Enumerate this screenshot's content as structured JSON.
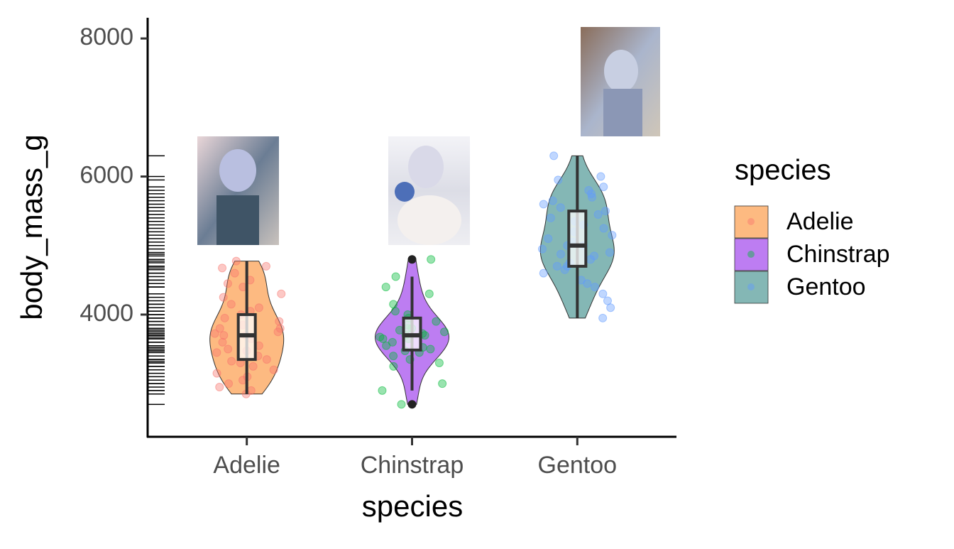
{
  "chart_data": {
    "type": "violin",
    "x_label": "species",
    "y_label": "body_mass_g",
    "legend_title": "species",
    "categories": [
      "Adelie",
      "Chinstrap",
      "Gentoo"
    ],
    "ylim": [
      2230,
      8300
    ],
    "yticks": [
      4000,
      6000,
      8000
    ],
    "rug": true,
    "series": [
      {
        "name": "Adelie",
        "color": "#FDAE6B",
        "point_color": "#F8766D",
        "values": [
          2850,
          2900,
          2950,
          3000,
          3050,
          3100,
          3150,
          3200,
          3250,
          3300,
          3325,
          3350,
          3400,
          3450,
          3475,
          3500,
          3550,
          3600,
          3650,
          3700,
          3700,
          3725,
          3750,
          3800,
          3800,
          3850,
          3900,
          3950,
          4000,
          4050,
          4100,
          4150,
          4250,
          4300,
          4400,
          4450,
          4500,
          4600,
          4675,
          4700,
          4775
        ],
        "box": {
          "whisker_low": 2850,
          "q1": 3350,
          "median": 3700,
          "q3": 4000,
          "whisker_high": 4775,
          "outliers": []
        }
      },
      {
        "name": "Chinstrap",
        "color": "#B266F0",
        "point_color": "#00BA38",
        "values": [
          2700,
          2900,
          3000,
          3250,
          3300,
          3350,
          3400,
          3450,
          3475,
          3500,
          3525,
          3550,
          3600,
          3650,
          3650,
          3675,
          3700,
          3700,
          3725,
          3750,
          3775,
          3800,
          3800,
          3850,
          3900,
          3950,
          4000,
          4050,
          4150,
          4300,
          4400,
          4550,
          4800
        ],
        "box": {
          "whisker_low": 2900,
          "q1": 3487,
          "median": 3700,
          "q3": 3950,
          "whisker_high": 4550,
          "outliers": [
            2700,
            4800
          ]
        }
      },
      {
        "name": "Gentoo",
        "color": "#6FAAA8",
        "point_color": "#619CFF",
        "values": [
          3950,
          4100,
          4200,
          4300,
          4400,
          4450,
          4500,
          4600,
          4650,
          4700,
          4700,
          4750,
          4800,
          4850,
          4875,
          4900,
          4950,
          5000,
          5000,
          5050,
          5100,
          5150,
          5200,
          5250,
          5300,
          5350,
          5400,
          5450,
          5500,
          5550,
          5600,
          5650,
          5700,
          5750,
          5800,
          5850,
          5950,
          6000,
          6300
        ],
        "box": {
          "whisker_low": 3950,
          "q1": 4700,
          "median": 5000,
          "q3": 5500,
          "whisker_high": 6300,
          "outliers": []
        }
      }
    ]
  }
}
